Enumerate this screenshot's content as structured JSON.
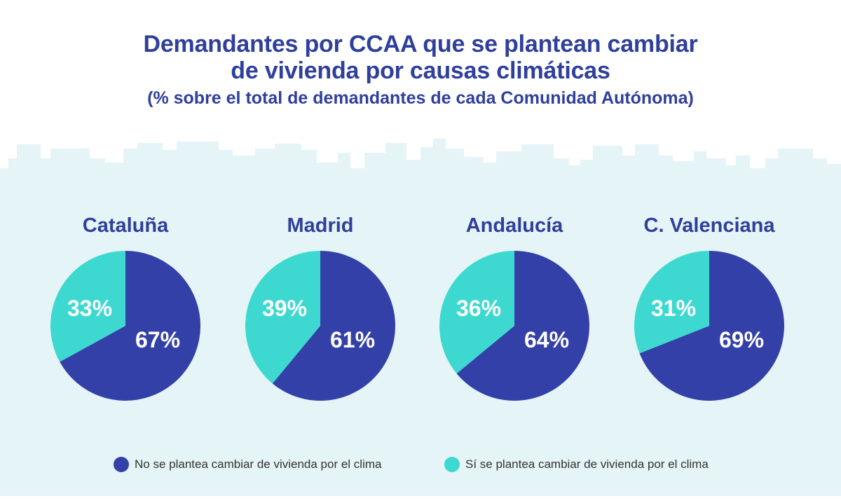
{
  "title_line1": "Demandantes por CCAA que se plantean cambiar",
  "title_line2": "de vivienda por causas climáticas",
  "subtitle": "(% sobre el total de demandantes de cada Comunidad Autónoma)",
  "colors": {
    "no": "#3340a8",
    "si": "#3dd9d0",
    "background": "#e5f4f6",
    "title": "#2f3f9c"
  },
  "chart_data": {
    "type": "pie",
    "title": "Demandantes por CCAA que se plantean cambiar de vivienda por causas climáticas",
    "subtitle": "(% sobre el total de demandantes de cada Comunidad Autónoma)",
    "categories": [
      "Cataluña",
      "Madrid",
      "Andalucía",
      "C. Valenciana"
    ],
    "series": [
      {
        "name": "No se plantea cambiar de vivienda por el clima",
        "values": [
          67,
          61,
          64,
          69
        ],
        "labels": [
          "67%",
          "61%",
          "64%",
          "69%"
        ]
      },
      {
        "name": "Sí se plantea cambiar de vivienda por el clima",
        "values": [
          33,
          39,
          36,
          31
        ],
        "labels": [
          "33%",
          "39%",
          "36%",
          "31%"
        ]
      }
    ],
    "legend_position": "bottom"
  }
}
